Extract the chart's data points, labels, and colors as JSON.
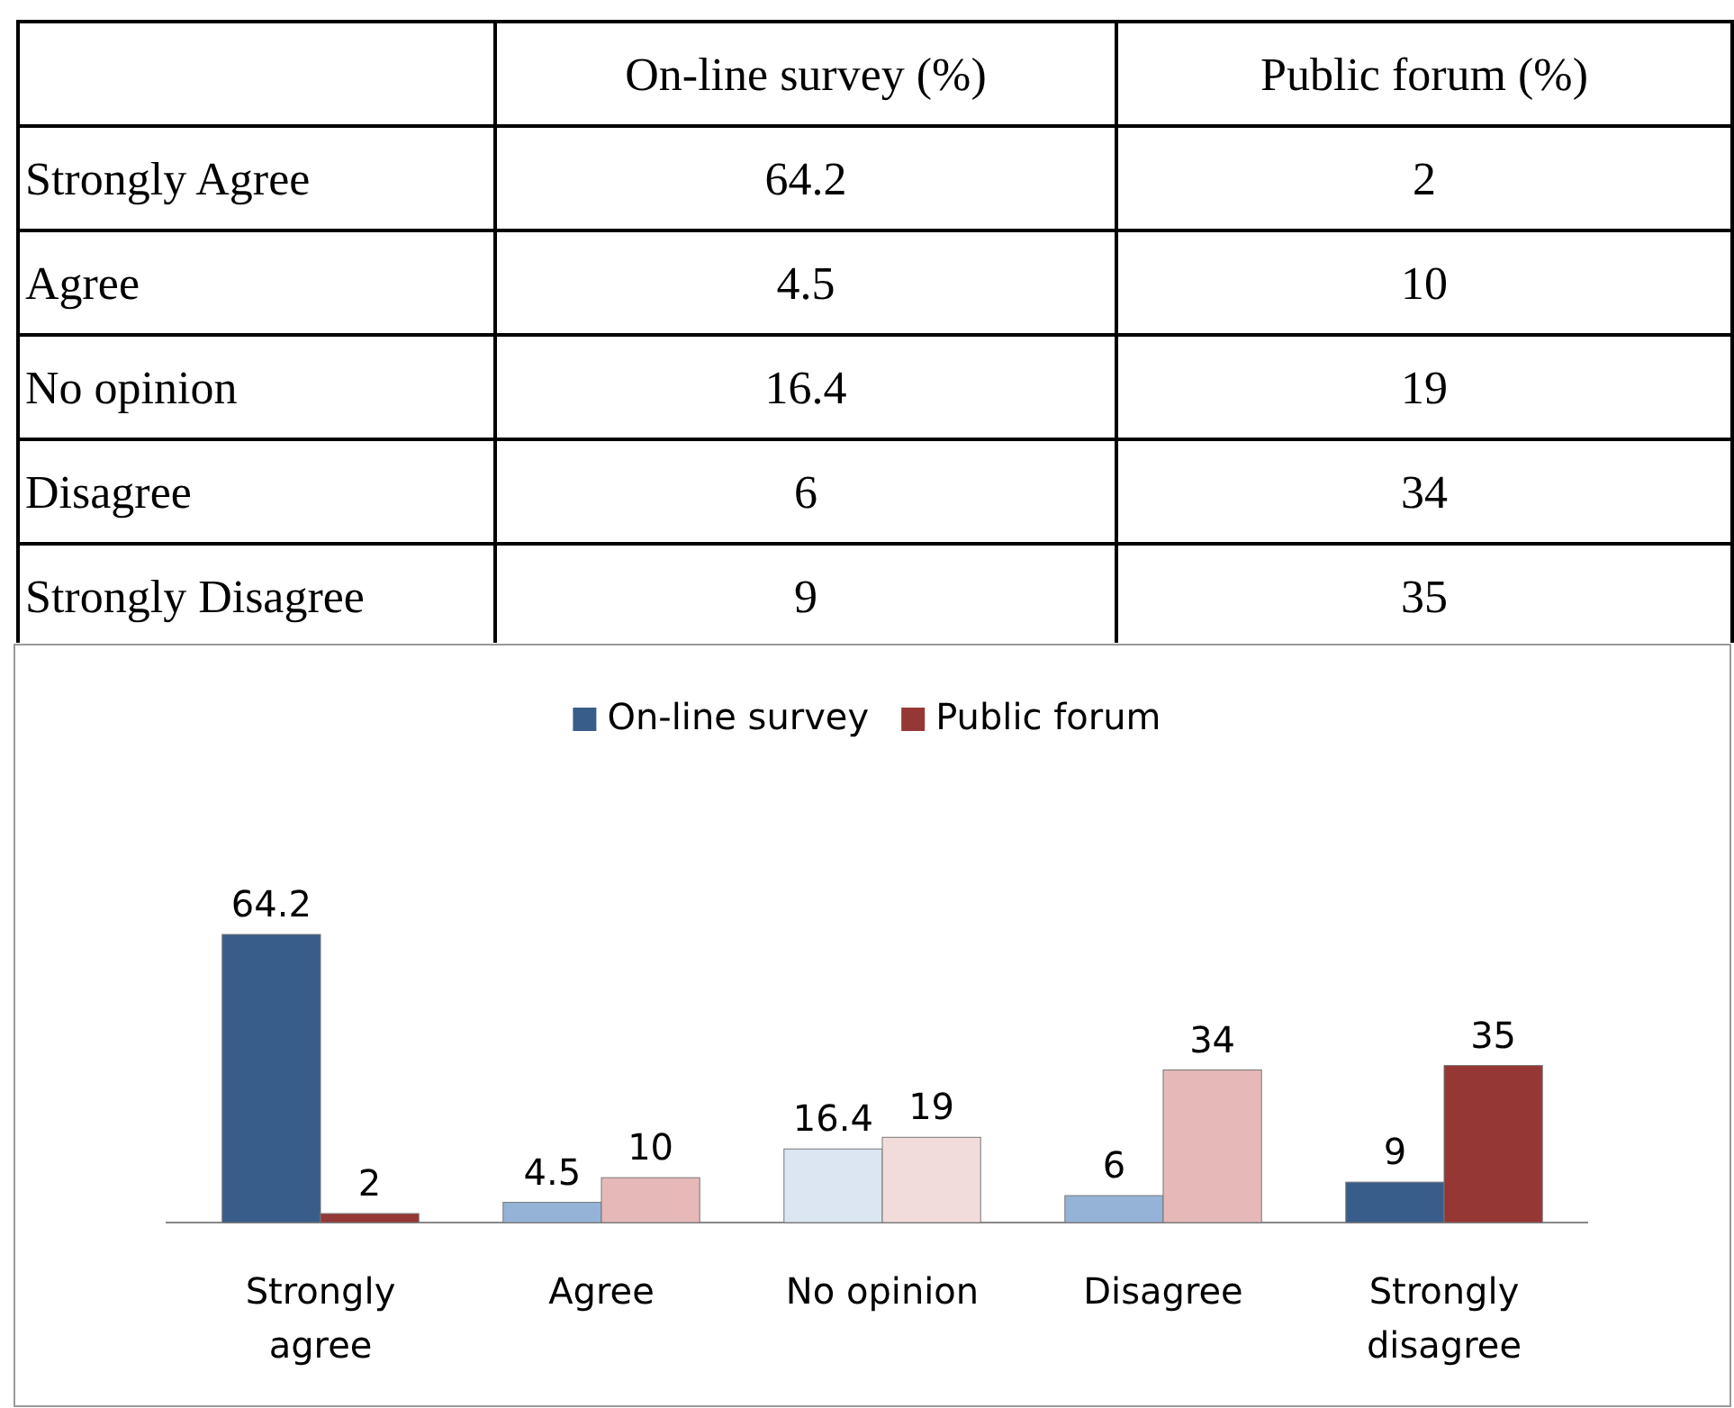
{
  "chart_data": [
    {
      "type": "other",
      "categories": [
        "Strongly Agree",
        "Agree",
        "No opinion",
        "Disagree",
        "Strongly Disagree"
      ],
      "data_labels": true,
      "series": [
        {
          "name": "On-line survey (%)",
          "values": [
            64.2,
            4.5,
            16.4,
            6,
            9
          ]
        },
        {
          "name": "Public forum (%)",
          "values": [
            2,
            10,
            19,
            34,
            35
          ]
        }
      ]
    },
    {
      "type": "bar",
      "categories": [
        "Strongly agree",
        "Agree",
        "No opinion",
        "Disagree",
        "Strongly disagree"
      ],
      "data_labels": true,
      "legend": "top",
      "series": [
        {
          "name": "On-line survey",
          "color": "#385d8a",
          "colors": [
            "#385d8a",
            "#95b3d7",
            "#dce6f2",
            "#95b3d7",
            "#385d8a"
          ],
          "values": [
            64.2,
            4.5,
            16.4,
            6,
            9
          ]
        },
        {
          "name": "Public forum",
          "color": "#953735",
          "colors": [
            "#953735",
            "#e6b9b8",
            "#f2dcdb",
            "#e6b9b8",
            "#953735"
          ],
          "values": [
            2,
            10,
            19,
            34,
            35
          ]
        }
      ]
    }
  ]
}
